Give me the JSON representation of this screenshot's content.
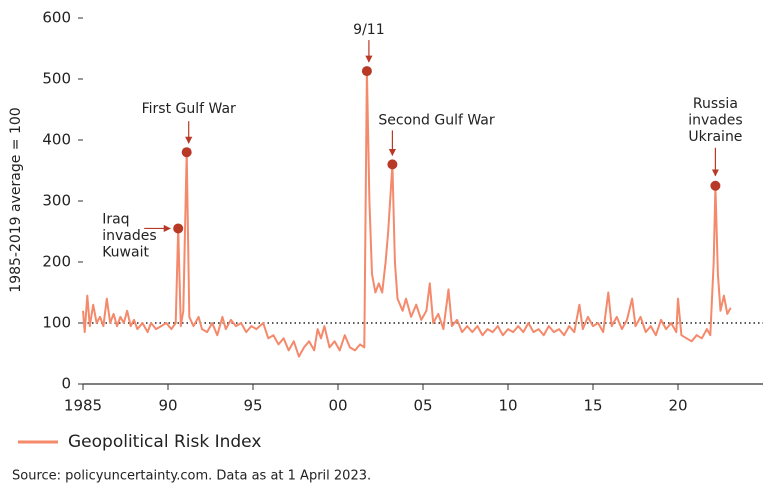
{
  "chart_data": {
    "type": "line",
    "y_axis_label": "1985-2019 average = 100",
    "xlim": [
      1985,
      2025
    ],
    "xticks": [
      1985,
      {
        "value": 1990,
        "label": "90"
      },
      {
        "value": 1995,
        "label": "95"
      },
      {
        "value": 2000,
        "label": "00"
      },
      {
        "value": 2005,
        "label": "05"
      },
      {
        "value": 2010,
        "label": "10"
      },
      {
        "value": 2015,
        "label": "15"
      },
      {
        "value": 2020,
        "label": "20"
      }
    ],
    "ylim": [
      0,
      600
    ],
    "yticks": [
      0,
      100,
      200,
      300,
      400,
      500,
      600
    ],
    "reference_line": 100,
    "x": [
      1985.0,
      1985.1,
      1985.25,
      1985.4,
      1985.6,
      1985.8,
      1986.0,
      1986.2,
      1986.4,
      1986.6,
      1986.8,
      1987.0,
      1987.2,
      1987.4,
      1987.6,
      1987.8,
      1988.0,
      1988.2,
      1988.5,
      1988.8,
      1989.0,
      1989.3,
      1989.6,
      1989.9,
      1990.2,
      1990.45,
      1990.6,
      1990.75,
      1990.9,
      1991.1,
      1991.25,
      1991.5,
      1991.8,
      1992.0,
      1992.3,
      1992.6,
      1992.9,
      1993.2,
      1993.4,
      1993.7,
      1994.0,
      1994.3,
      1994.6,
      1994.9,
      1995.2,
      1995.6,
      1995.9,
      1996.2,
      1996.5,
      1996.8,
      1997.1,
      1997.4,
      1997.7,
      1998.0,
      1998.3,
      1998.6,
      1998.8,
      1999.0,
      1999.2,
      1999.5,
      1999.8,
      2000.1,
      2000.4,
      2000.7,
      2001.0,
      2001.3,
      2001.55,
      2001.7,
      2001.85,
      2002.0,
      2002.2,
      2002.4,
      2002.6,
      2002.8,
      2002.95,
      2003.2,
      2003.35,
      2003.5,
      2003.8,
      2004.0,
      2004.3,
      2004.6,
      2004.9,
      2005.2,
      2005.4,
      2005.6,
      2005.9,
      2006.2,
      2006.5,
      2006.7,
      2007.0,
      2007.3,
      2007.6,
      2007.9,
      2008.2,
      2008.5,
      2008.8,
      2009.1,
      2009.4,
      2009.7,
      2010.0,
      2010.3,
      2010.6,
      2010.9,
      2011.2,
      2011.5,
      2011.8,
      2012.1,
      2012.4,
      2012.7,
      2013.0,
      2013.3,
      2013.6,
      2013.9,
      2014.2,
      2014.4,
      2014.7,
      2015.0,
      2015.3,
      2015.6,
      2015.9,
      2016.1,
      2016.4,
      2016.7,
      2017.0,
      2017.3,
      2017.5,
      2017.8,
      2018.1,
      2018.4,
      2018.7,
      2019.0,
      2019.3,
      2019.6,
      2019.9,
      2020.0,
      2020.2,
      2020.5,
      2020.8,
      2021.1,
      2021.4,
      2021.7,
      2021.9,
      2022.1,
      2022.2,
      2022.35,
      2022.5,
      2022.7,
      2022.9,
      2023.1
    ],
    "series": [
      {
        "name": "Geopolitical Risk Index",
        "color": "#f4896b",
        "values": [
          120,
          85,
          145,
          95,
          130,
          100,
          110,
          95,
          140,
          100,
          115,
          95,
          110,
          100,
          120,
          95,
          105,
          90,
          100,
          85,
          100,
          90,
          95,
          100,
          90,
          100,
          255,
          95,
          120,
          380,
          110,
          95,
          110,
          90,
          85,
          100,
          80,
          110,
          90,
          105,
          95,
          100,
          85,
          95,
          90,
          100,
          75,
          80,
          65,
          75,
          55,
          70,
          45,
          60,
          70,
          55,
          90,
          75,
          95,
          60,
          70,
          55,
          80,
          60,
          55,
          65,
          60,
          513,
          300,
          180,
          150,
          165,
          150,
          200,
          250,
          360,
          200,
          140,
          120,
          140,
          110,
          130,
          105,
          120,
          165,
          100,
          115,
          90,
          155,
          95,
          105,
          85,
          95,
          85,
          95,
          80,
          90,
          85,
          95,
          80,
          90,
          85,
          95,
          85,
          100,
          85,
          90,
          80,
          95,
          85,
          90,
          80,
          95,
          85,
          130,
          90,
          110,
          95,
          100,
          85,
          150,
          95,
          110,
          90,
          105,
          140,
          95,
          110,
          85,
          95,
          80,
          105,
          90,
          100,
          85,
          140,
          80,
          75,
          70,
          80,
          75,
          90,
          80,
          200,
          325,
          180,
          120,
          145,
          115,
          125
        ]
      }
    ],
    "annotations": [
      {
        "text": [
          "Iraq",
          "invades",
          "Kuwait"
        ],
        "x": 1990.6,
        "y": 255
      },
      {
        "text": [
          "First Gulf War"
        ],
        "x": 1991.1,
        "y": 380
      },
      {
        "text": [
          "9/11"
        ],
        "x": 2001.7,
        "y": 513
      },
      {
        "text": [
          "Second Gulf War"
        ],
        "x": 2003.2,
        "y": 360
      },
      {
        "text": [
          "Russia",
          "invades",
          "Ukraine"
        ],
        "x": 2022.2,
        "y": 325
      }
    ],
    "marker_color": "#b83a26",
    "source": "Source: policyuncertainty.com. Data as at 1 April 2023."
  }
}
